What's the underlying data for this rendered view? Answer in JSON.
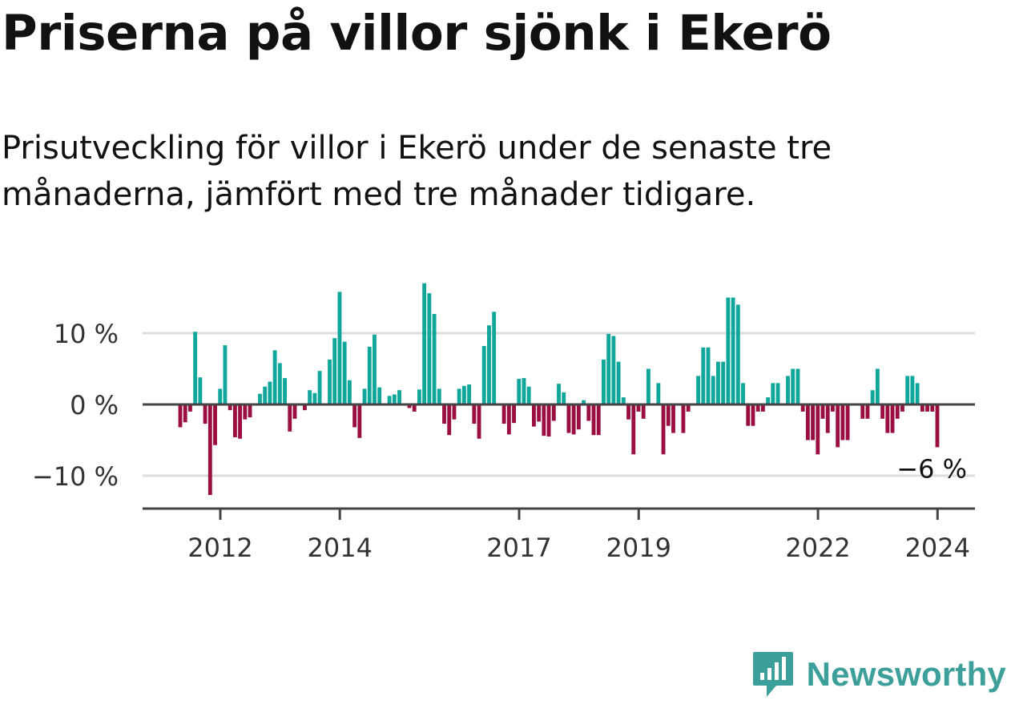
{
  "title": "Priserna på villor sjönk i Ekerö",
  "subtitle": "Prisutveckling för villor i Ekerö under de senaste tre månaderna, jämfört med tre månader tidigare.",
  "brand": {
    "name": "Newsworthy",
    "logo_icon": "newsworthy-chart-icon",
    "color": "#3c9f9a"
  },
  "colors": {
    "positive": "#0fa69b",
    "negative": "#9b0e41",
    "zero_line": "#444444",
    "grid": "#dddddd",
    "axis": "#444444",
    "tick_text": "#333333"
  },
  "chart_data": {
    "type": "bar",
    "title": "Priserna på villor sjönk i Ekerö",
    "xlabel": "",
    "ylabel": "",
    "ylim": [
      -14.5,
      17.5
    ],
    "yticks": [
      {
        "value": 10,
        "label": "10 %"
      },
      {
        "value": 0,
        "label": "0 %"
      },
      {
        "value": -10,
        "label": "−10 %"
      }
    ],
    "xticks": [
      {
        "year": 2012,
        "label": "2012"
      },
      {
        "year": 2014,
        "label": "2014"
      },
      {
        "year": 2017,
        "label": "2017"
      },
      {
        "year": 2019,
        "label": "2019"
      },
      {
        "year": 2022,
        "label": "2022"
      },
      {
        "year": 2024,
        "label": "2024"
      }
    ],
    "x_start": 2011.33,
    "x_step": 0.08333,
    "grid": true,
    "values": [
      -3.2,
      -2.5,
      -1,
      10.2,
      3.8,
      -2.7,
      -12.7,
      -5.7,
      2.2,
      8.3,
      -0.8,
      -4.6,
      -4.8,
      -2.1,
      -1.8,
      0,
      1.5,
      2.5,
      3.2,
      7.6,
      5.8,
      3.7,
      -3.8,
      -2,
      0,
      -0.8,
      2,
      1.6,
      4.7,
      0,
      6.3,
      9.3,
      15.8,
      8.8,
      3.4,
      -3.2,
      -4.7,
      2.2,
      8.1,
      9.8,
      2.4,
      0,
      1.2,
      1.4,
      2,
      0,
      -0.5,
      -1,
      2.1,
      17,
      15.6,
      12.7,
      2.2,
      -2.7,
      -4.3,
      -2.1,
      2.2,
      2.6,
      2.8,
      -2.7,
      -4.8,
      8.2,
      11.1,
      13,
      0,
      -2.7,
      -4.2,
      -2.6,
      3.6,
      3.7,
      2.5,
      -3.1,
      -2.4,
      -4.4,
      -4.5,
      -2.3,
      2.9,
      1.7,
      -4,
      -4.2,
      -3.5,
      0.6,
      -2.3,
      -4.3,
      -4.3,
      6.3,
      9.9,
      9.6,
      6,
      1,
      -2.1,
      -7,
      -1,
      -2,
      5,
      0,
      3,
      -7,
      -3,
      -4,
      0,
      -4,
      -1,
      0,
      4,
      8,
      8,
      4,
      6,
      6,
      15,
      15,
      14,
      3,
      -3,
      -3,
      -1,
      -1,
      1,
      3,
      3,
      0,
      4,
      5,
      5,
      -1,
      -5,
      -5,
      -7,
      -2,
      -4,
      -1,
      -6,
      -5,
      -5,
      0,
      0,
      -2,
      -2,
      2,
      5,
      -2,
      -4,
      -4,
      -2,
      -1,
      4,
      4,
      3,
      -1,
      -1,
      -1,
      -6
    ],
    "annotation": {
      "label": "−6 %",
      "value": -6
    }
  }
}
